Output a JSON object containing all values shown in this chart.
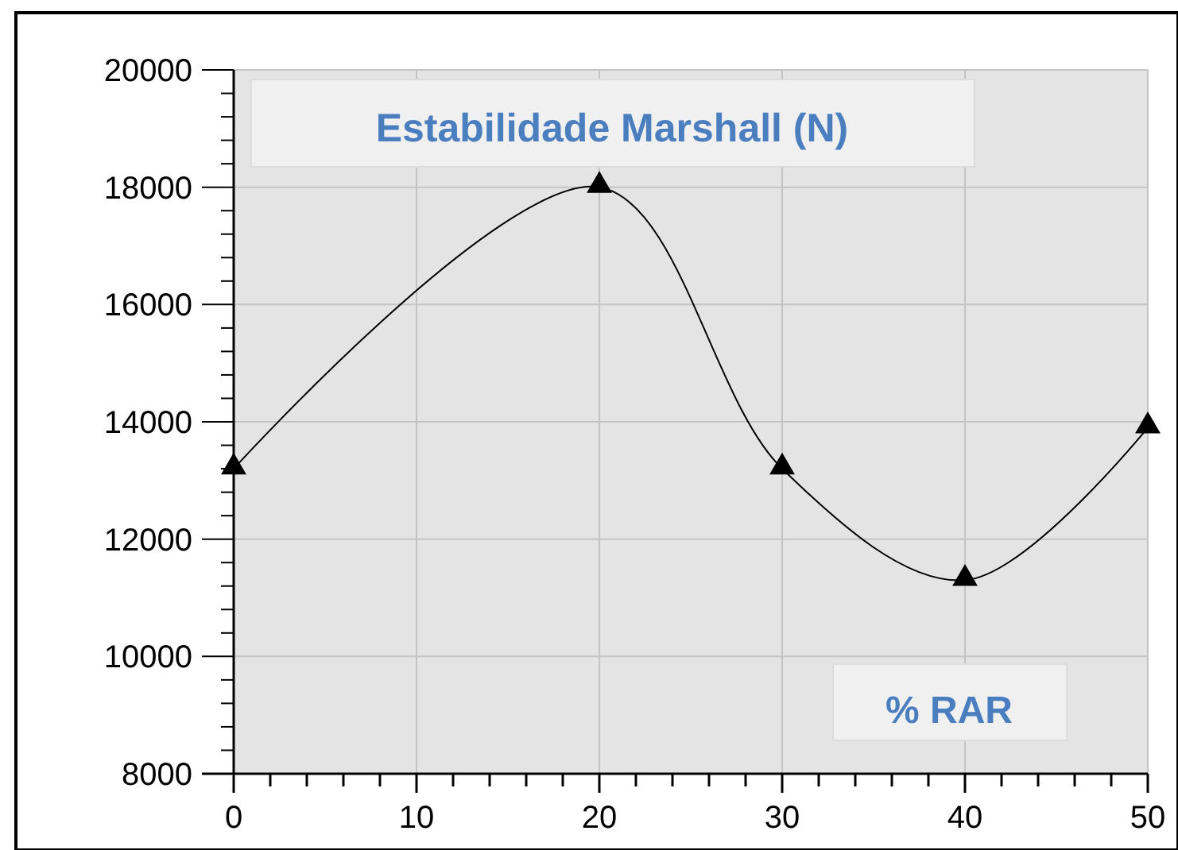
{
  "chart_data": {
    "type": "line",
    "title": "Estabilidade Marshall (N)",
    "xlabel": "% RAR",
    "x": [
      0,
      20,
      30,
      40,
      50
    ],
    "series": [
      {
        "color": "#000000",
        "values": [
          13200,
          18000,
          13200,
          11300,
          13900
        ]
      }
    ],
    "xlim": [
      0,
      50
    ],
    "ylim": [
      8000,
      20000
    ],
    "xticks": [
      0,
      {
        "value": 2,
        "label": null
      },
      {
        "value": 4,
        "label": null
      },
      {
        "value": 6,
        "label": null
      },
      {
        "value": 8,
        "label": null
      },
      10,
      {
        "value": 12,
        "label": null
      },
      {
        "value": 14,
        "label": null
      },
      {
        "value": 16,
        "label": null
      },
      {
        "value": 18,
        "label": null
      },
      20,
      {
        "value": 22,
        "label": null
      },
      {
        "value": 24,
        "label": null
      },
      {
        "value": 26,
        "label": null
      },
      {
        "value": 28,
        "label": null
      },
      30,
      {
        "value": 32,
        "label": null
      },
      {
        "value": 34,
        "label": null
      },
      {
        "value": 36,
        "label": null
      },
      {
        "value": 38,
        "label": null
      },
      40,
      {
        "value": 42,
        "label": null
      },
      {
        "value": 44,
        "label": null
      },
      {
        "value": 46,
        "label": null
      },
      {
        "value": 48,
        "label": null
      },
      50
    ],
    "yticks": [
      8000,
      {
        "value": 8400,
        "label": null
      },
      {
        "value": 8800,
        "label": null
      },
      {
        "value": 9200,
        "label": null
      },
      {
        "value": 9600,
        "label": null
      },
      10000,
      {
        "value": 10400,
        "label": null
      },
      {
        "value": 10800,
        "label": null
      },
      {
        "value": 11200,
        "label": null
      },
      {
        "value": 11600,
        "label": null
      },
      12000,
      {
        "value": 12400,
        "label": null
      },
      {
        "value": 12800,
        "label": null
      },
      {
        "value": 13200,
        "label": null
      },
      {
        "value": 13600,
        "label": null
      },
      14000,
      {
        "value": 14400,
        "label": null
      },
      {
        "value": 14800,
        "label": null
      },
      {
        "value": 15200,
        "label": null
      },
      {
        "value": 15600,
        "label": null
      },
      16000,
      {
        "value": 16400,
        "label": null
      },
      {
        "value": 16800,
        "label": null
      },
      {
        "value": 17200,
        "label": null
      },
      {
        "value": 17600,
        "label": null
      },
      18000,
      {
        "value": 18400,
        "label": null
      },
      {
        "value": 18800,
        "label": null
      },
      {
        "value": 19200,
        "label": null
      },
      {
        "value": 19600,
        "label": null
      },
      20000
    ],
    "grid": true,
    "marker": "triangle",
    "line_style": "solid"
  }
}
